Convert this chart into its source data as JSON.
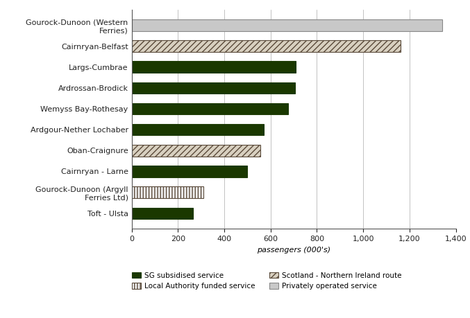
{
  "routes": [
    "Gourock-Dunoon (Western\nFerries)",
    "Cairnryan-Belfast",
    "Largs-Cumbrae",
    "Ardrossan-Brodick",
    "Wemyss Bay-Rothesay",
    "Ardgour-Nether Lochaber",
    "Oban-Craignure",
    "Cairnryan - Larne",
    "Gourock-Dunoon (Argyll\nFerries Ltd)",
    "Toft - Ulsta"
  ],
  "values": [
    1340,
    1160,
    710,
    705,
    675,
    570,
    555,
    500,
    310,
    265
  ],
  "bar_types": [
    "private",
    "scotland_ni",
    "sg",
    "sg",
    "sg",
    "sg",
    "scotland_ni",
    "sg",
    "local_auth",
    "sg"
  ],
  "xlim": [
    0,
    1400
  ],
  "xticks": [
    0,
    200,
    400,
    600,
    800,
    1000,
    1200,
    1400
  ],
  "xlabel": "passengers (000's)",
  "bar_height": 0.55,
  "background_color": "#ffffff",
  "figure_width": 6.77,
  "figure_height": 4.59,
  "dpi": 100
}
